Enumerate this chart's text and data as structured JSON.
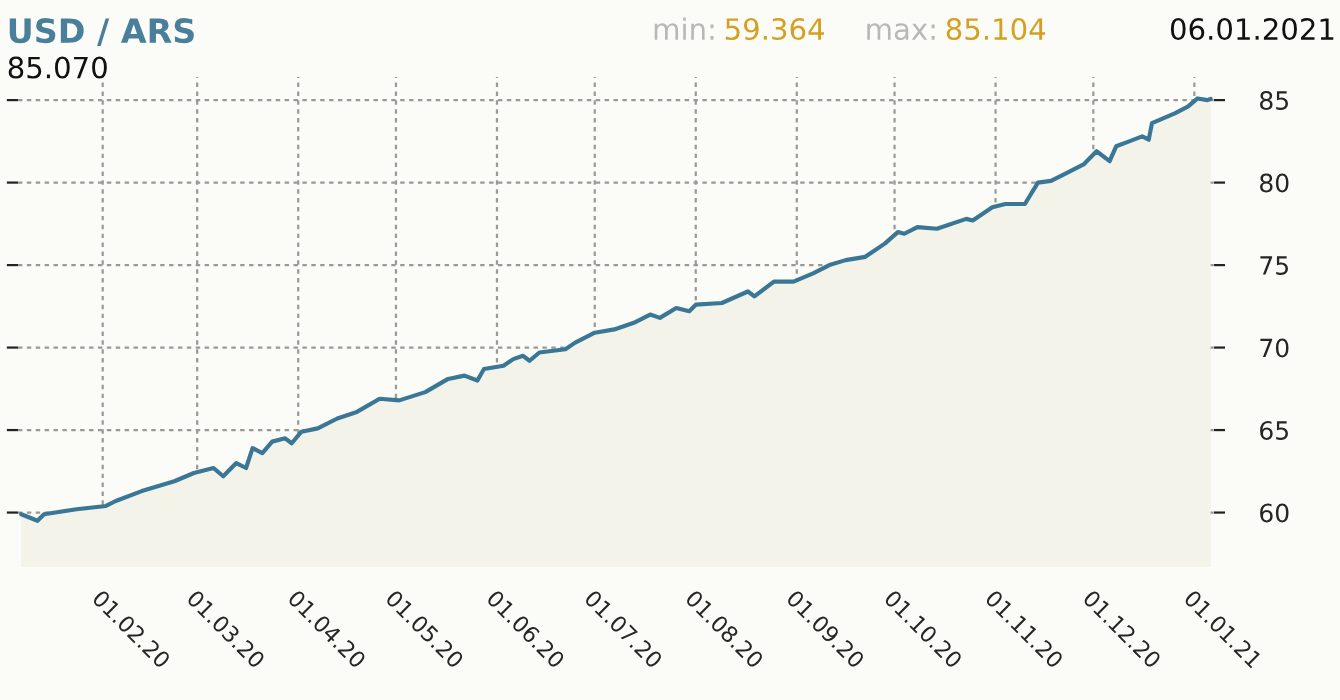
{
  "chart_data": {
    "type": "area",
    "title": "USD / ARS",
    "annotations": [
      "min:",
      "59.364",
      "max:",
      "85.104",
      "06.01.2021",
      "85.070"
    ],
    "x": [
      "2020-01-07",
      "2020-01-12",
      "2020-01-14",
      "2020-01-24",
      "2020-02-02",
      "2020-02-05",
      "2020-02-13",
      "2020-02-23",
      "2020-02-29",
      "2020-03-06",
      "2020-03-09",
      "2020-03-13",
      "2020-03-16",
      "2020-03-18",
      "2020-03-21",
      "2020-03-24",
      "2020-03-28",
      "2020-03-30",
      "2020-04-02",
      "2020-04-07",
      "2020-04-13",
      "2020-04-19",
      "2020-04-26",
      "2020-05-02",
      "2020-05-10",
      "2020-05-17",
      "2020-05-22",
      "2020-05-26",
      "2020-05-28",
      "2020-06-03",
      "2020-06-06",
      "2020-06-09",
      "2020-06-11",
      "2020-06-14",
      "2020-06-22",
      "2020-06-25",
      "2020-07-01",
      "2020-07-07",
      "2020-07-13",
      "2020-07-18",
      "2020-07-21",
      "2020-07-26",
      "2020-07-30",
      "2020-08-01",
      "2020-08-09",
      "2020-08-17",
      "2020-08-19",
      "2020-08-25",
      "2020-08-31",
      "2020-09-06",
      "2020-09-11",
      "2020-09-16",
      "2020-09-22",
      "2020-09-28",
      "2020-10-02",
      "2020-10-04",
      "2020-10-08",
      "2020-10-14",
      "2020-10-23",
      "2020-10-25",
      "2020-10-31",
      "2020-11-04",
      "2020-11-10",
      "2020-11-14",
      "2020-11-18",
      "2020-11-22",
      "2020-11-28",
      "2020-12-02",
      "2020-12-06",
      "2020-12-08",
      "2020-12-12",
      "2020-12-16",
      "2020-12-18",
      "2020-12-19",
      "2020-12-26",
      "2020-12-30",
      "2021-01-02",
      "2021-01-05",
      "2021-01-06"
    ],
    "series": [
      {
        "color": "#3a7797",
        "values": [
          59.9,
          59.5,
          59.9,
          60.2,
          60.4,
          60.7,
          61.3,
          61.9,
          62.4,
          62.7,
          62.2,
          63.0,
          62.7,
          63.9,
          63.6,
          64.3,
          64.5,
          64.2,
          64.9,
          65.1,
          65.7,
          66.1,
          66.9,
          66.8,
          67.3,
          68.1,
          68.3,
          68.0,
          68.7,
          68.9,
          69.3,
          69.5,
          69.2,
          69.7,
          69.9,
          70.3,
          70.9,
          71.1,
          71.5,
          72.0,
          71.8,
          72.4,
          72.2,
          72.6,
          72.7,
          73.4,
          73.1,
          74.0,
          74.0,
          74.5,
          75.0,
          75.3,
          75.5,
          76.3,
          77.0,
          76.9,
          77.3,
          77.2,
          77.8,
          77.7,
          78.5,
          78.7,
          78.7,
          80.0,
          80.1,
          80.5,
          81.1,
          81.9,
          81.3,
          82.2,
          82.5,
          82.8,
          82.6,
          83.6,
          84.2,
          84.6,
          85.1,
          85.0,
          85.07
        ]
      }
    ],
    "xlim": [
      "2020-01-06",
      "2021-01-07"
    ],
    "xticks": [
      {
        "value": "2020-02-01",
        "label": "01.02.20"
      },
      {
        "value": "2020-03-01",
        "label": "01.03.20"
      },
      {
        "value": "2020-04-01",
        "label": "01.04.20"
      },
      {
        "value": "2020-05-01",
        "label": "01.05.20"
      },
      {
        "value": "2020-06-01",
        "label": "01.06.20"
      },
      {
        "value": "2020-07-01",
        "label": "01.07.20"
      },
      {
        "value": "2020-08-01",
        "label": "01.08.20"
      },
      {
        "value": "2020-09-01",
        "label": "01.09.20"
      },
      {
        "value": "2020-10-01",
        "label": "01.10.20"
      },
      {
        "value": "2020-11-01",
        "label": "01.11.20"
      },
      {
        "value": "2020-12-01",
        "label": "01.12.20"
      },
      {
        "value": "2021-01-01",
        "label": "01.01.21"
      }
    ],
    "ylim": [
      56.7,
      86.4
    ],
    "yticks": [
      60,
      65,
      70,
      75,
      80,
      85
    ],
    "grid": true,
    "line_style": "solid"
  }
}
